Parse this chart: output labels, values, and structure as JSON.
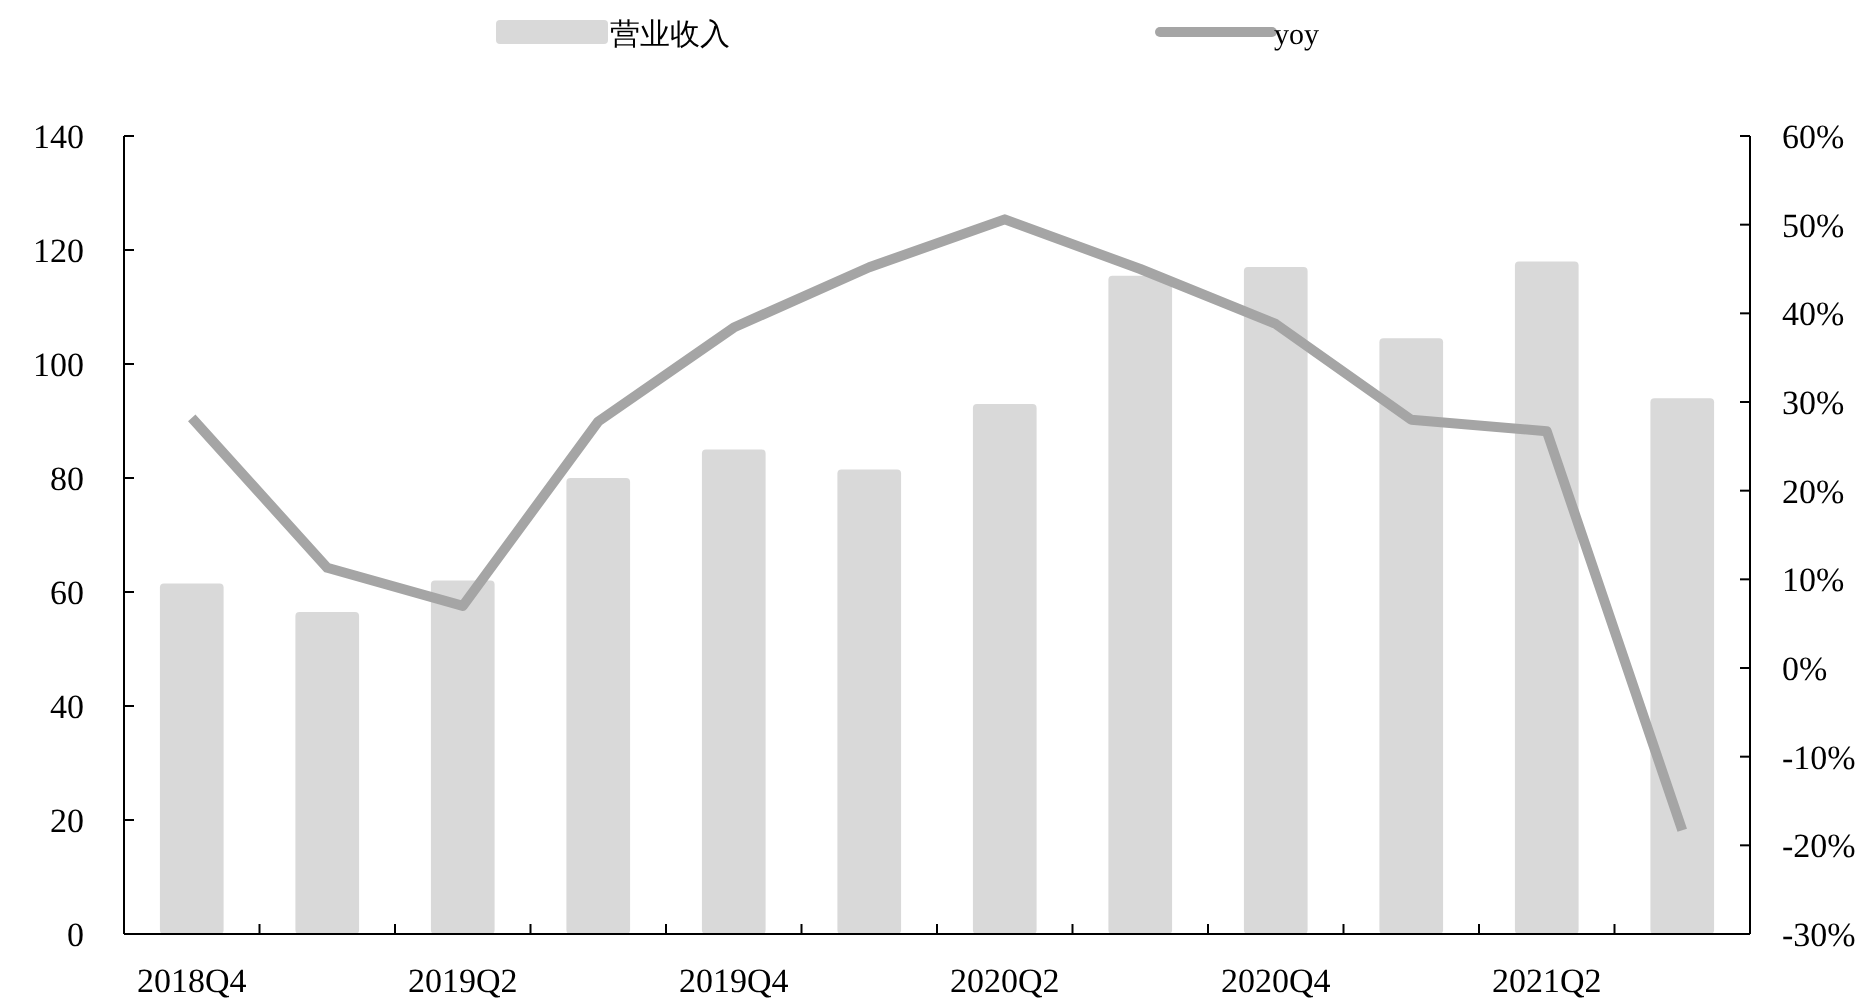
{
  "chart_data": {
    "type": "bar",
    "categories": [
      "2018Q4",
      null,
      "2019Q2",
      null,
      "2019Q4",
      null,
      "2020Q2",
      null,
      "2020Q4",
      null,
      "2021Q2",
      null
    ],
    "series": [
      {
        "name": "营业收入",
        "color": "#d9d9d9",
        "values": [
          61.5,
          56.5,
          62,
          80,
          85,
          81.5,
          93,
          115.5,
          117,
          104.5,
          118,
          94
        ]
      },
      {
        "name": "yoy",
        "type": "line",
        "axis": "y2",
        "color": "#a5a5a5",
        "values": [
          28.2,
          11.3,
          7.0,
          27.8,
          38.4,
          45.2,
          50.6,
          45,
          38.8,
          28,
          26.7,
          -18.3
        ]
      }
    ],
    "ylim": [
      0,
      140
    ],
    "yticks": [
      0,
      20,
      40,
      60,
      80,
      100,
      120,
      140
    ],
    "y2lim": [
      -30,
      60
    ],
    "y2ticks": [
      {
        "value": -30,
        "label": "-30%"
      },
      {
        "value": -20,
        "label": "-20%"
      },
      {
        "value": -10,
        "label": "-10%"
      },
      {
        "value": 0,
        "label": "0%"
      },
      {
        "value": 10,
        "label": "10%"
      },
      {
        "value": 20,
        "label": "20%"
      },
      {
        "value": 30,
        "label": "30%"
      },
      {
        "value": 40,
        "label": "40%"
      },
      {
        "value": 50,
        "label": "50%"
      },
      {
        "value": 60,
        "label": "60%"
      }
    ],
    "legend": "top",
    "grid": false,
    "marker": "none",
    "line_style": "solid"
  }
}
